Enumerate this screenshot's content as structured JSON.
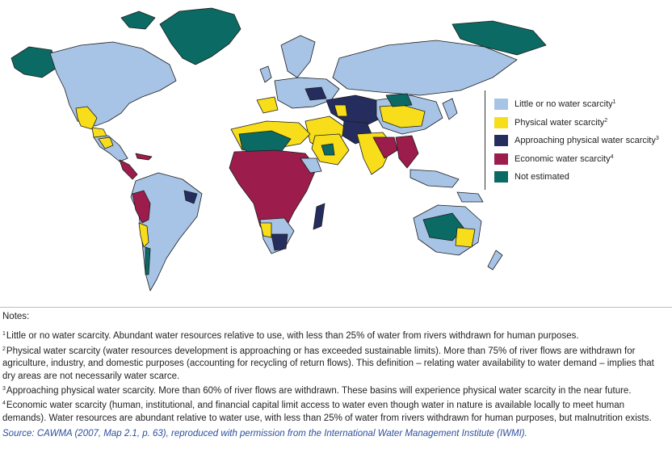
{
  "colors": {
    "little": "#a7c4e6",
    "physical": "#f7dd1a",
    "approaching": "#252d5e",
    "economic": "#9c1c4c",
    "not_estimated": "#0b6a63",
    "border": "#1c1c1c",
    "frame": "#333333",
    "source_text": "#2d4f9e"
  },
  "legend": [
    {
      "label": "Little or no water scarcity",
      "note": "1",
      "color": "#a7c4e6",
      "icon": "swatch-little"
    },
    {
      "label": "Physical water scarcity",
      "note": "2",
      "color": "#f7dd1a",
      "icon": "swatch-physical"
    },
    {
      "label": "Approaching physical water scarcity",
      "note": "3",
      "color": "#252d5e",
      "icon": "swatch-approaching"
    },
    {
      "label": "Economic water scarcity",
      "note": "4",
      "color": "#9c1c4c",
      "icon": "swatch-economic"
    },
    {
      "label": "Not estimated",
      "note": "",
      "color": "#0b6a63",
      "icon": "swatch-not-estimated"
    }
  ],
  "notes": {
    "heading": "Notes:",
    "items": [
      {
        "num": "1",
        "text": "Little or no water scarcity. Abundant water resources relative to use, with less than 25% of water from rivers withdrawn for human purposes."
      },
      {
        "num": "2",
        "text": "Physical water scarcity (water resources development is approaching or has exceeded sustainable limits). More than 75% of river flows are withdrawn for agriculture, industry, and domestic purposes (accounting for recycling of return flows). This definition – relating water availability to water demand – implies that dry areas are not necessarily water scarce."
      },
      {
        "num": "3",
        "text": "Approaching physical water scarcity. More than 60% of river flows are withdrawn. These basins will experience physical water scarcity in the near future."
      },
      {
        "num": "4",
        "text": "Economic water scarcity (human, institutional, and financial capital limit access to water even though water in nature is available locally to meet human demands). Water resources are abundant relative to water use, with less than 25% of water from rivers withdrawn for human purposes, but malnutrition exists."
      }
    ]
  },
  "source": "Source: CAWMA (2007, Map 2.1, p. 63), reproduced with permission from the International Water Management Institute (IWMI)."
}
